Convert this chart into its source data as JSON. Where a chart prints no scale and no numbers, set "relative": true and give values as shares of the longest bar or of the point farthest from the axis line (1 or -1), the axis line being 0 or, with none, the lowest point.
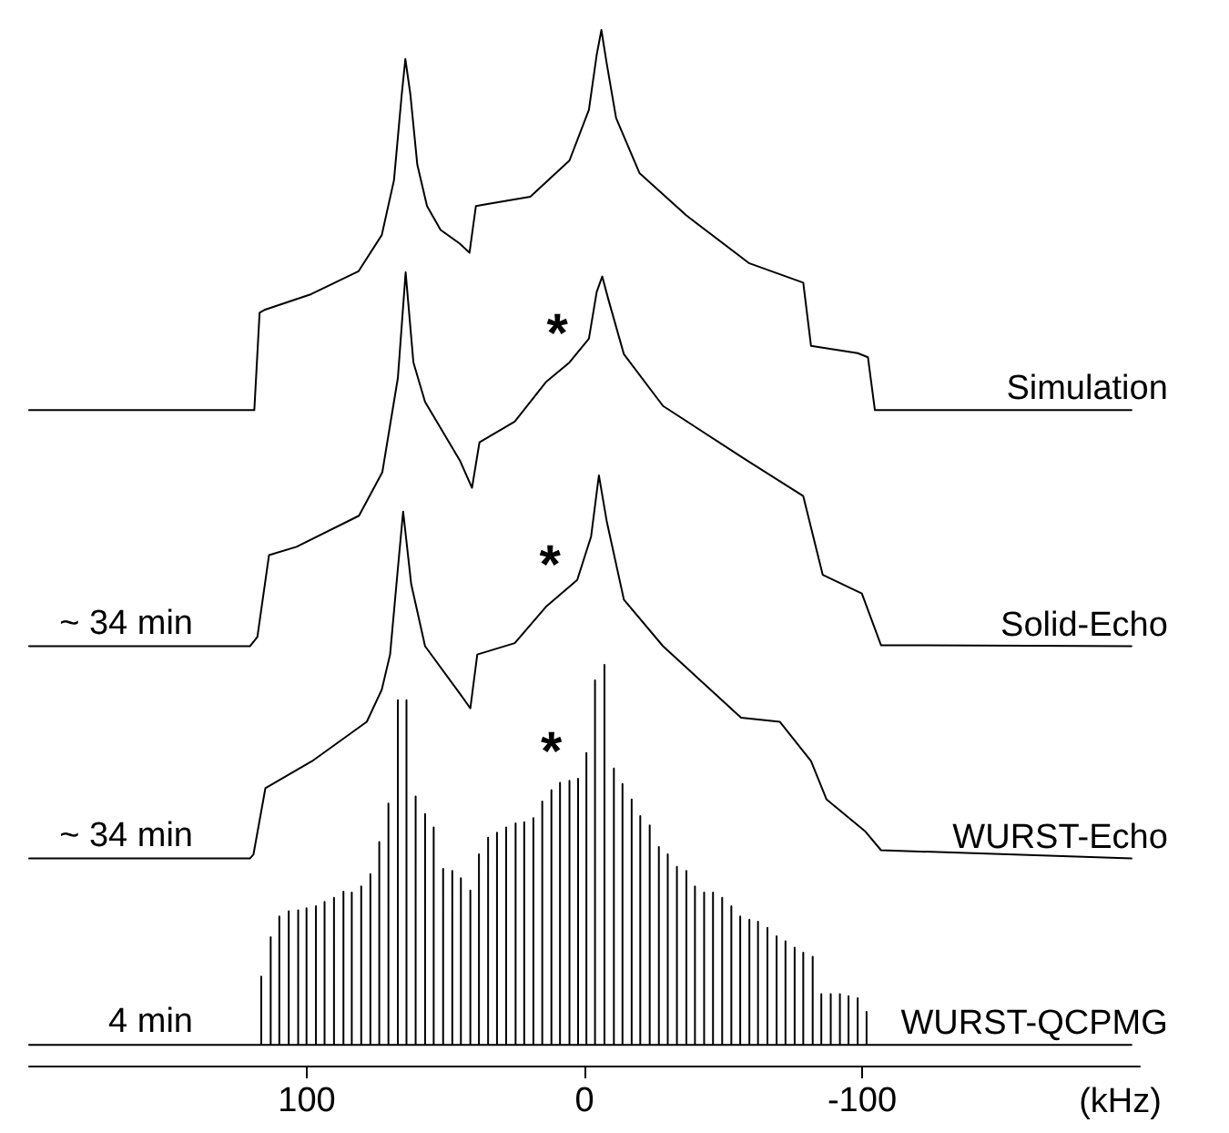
{
  "chart_data": {
    "type": "line",
    "relative": true,
    "xlabel": "(kHz)",
    "xlim": [
      200,
      -200
    ],
    "xticks": [
      100,
      0,
      -100
    ],
    "legend": false,
    "grid": false,
    "marker": "none",
    "line_style": "solid",
    "tick_labels": "x",
    "annotations": [
      "~ 34 min",
      "~ 34 min",
      "4 min",
      {
        "text": "*",
        "x": 9.8,
        "y": 0.669
      },
      {
        "text": "*",
        "x": 12.4,
        "y": 0.446
      },
      {
        "text": "*",
        "x": 11.9,
        "y": 0.266
      }
    ],
    "series": [
      {
        "name": "Simulation",
        "color": "#000000",
        "x": [
          200,
          118.9,
          117,
          115,
          98.4,
          81.4,
          73,
          68.6,
          65.8,
          64.5,
          62.7,
          60.2,
          56.7,
          51.8,
          45,
          41.4,
          39.1,
          34.9,
          19.5,
          5.4,
          -1.6,
          -4.4,
          -6.1,
          -8,
          -11.4,
          -19.8,
          -36.7,
          -59.2,
          -78.8,
          -81.6,
          -98.4,
          -102.1,
          -104.6,
          -197
        ],
        "values": [
          0.633,
          0.633,
          0.727,
          0.73,
          0.745,
          0.767,
          0.802,
          0.855,
          0.938,
          0.972,
          0.938,
          0.87,
          0.83,
          0.807,
          0.794,
          0.785,
          0.83,
          0.832,
          0.839,
          0.874,
          0.923,
          0.976,
          1,
          0.968,
          0.915,
          0.862,
          0.821,
          0.775,
          0.756,
          0.695,
          0.688,
          0.684,
          0.633,
          0.633
        ]
      },
      {
        "name": "Solid-Echo",
        "color": "#000000",
        "x": [
          200,
          120.5,
          117.8,
          113.6,
          103.7,
          81.2,
          72.8,
          67.2,
          64.4,
          61.6,
          57.4,
          44.8,
          40.5,
          37.8,
          25.1,
          13.9,
          5.4,
          -1.6,
          -4.4,
          -6.4,
          -8.6,
          -14.2,
          -28.3,
          -56.4,
          -78.8,
          -85.8,
          -99.9,
          -106.8,
          -197
        ],
        "values": [
          0.405,
          0.405,
          0.414,
          0.493,
          0.501,
          0.531,
          0.573,
          0.664,
          0.766,
          0.679,
          0.641,
          0.584,
          0.558,
          0.602,
          0.622,
          0.66,
          0.679,
          0.702,
          0.747,
          0.762,
          0.74,
          0.687,
          0.637,
          0.588,
          0.55,
          0.474,
          0.456,
          0.406,
          0.405
        ]
      },
      {
        "name": "WURST-Echo",
        "color": "#000000",
        "x": [
          200,
          120.5,
          119.2,
          114.9,
          98.1,
          78.4,
          73,
          70,
          67.2,
          65.3,
          62.4,
          57.4,
          44.8,
          41.1,
          38.6,
          25.1,
          13.9,
          2.6,
          -2.4,
          -5.2,
          -8,
          -14.2,
          -28.3,
          -56.4,
          -70.4,
          -81.6,
          -87.2,
          -101.2,
          -106.8,
          -197
        ],
        "values": [
          0.2,
          0.2,
          0.204,
          0.268,
          0.294,
          0.332,
          0.363,
          0.397,
          0.48,
          0.535,
          0.465,
          0.405,
          0.359,
          0.345,
          0.397,
          0.408,
          0.443,
          0.469,
          0.511,
          0.57,
          0.526,
          0.45,
          0.405,
          0.336,
          0.332,
          0.294,
          0.257,
          0.226,
          0.208,
          0.2
        ]
      },
      {
        "name": "WURST-QCPMG",
        "color": "#000000",
        "x": [
          200,
          116.4,
          116.4,
          116.4,
          113,
          113,
          113,
          109.9,
          109.9,
          109.9,
          106.5,
          106.5,
          106.5,
          103.1,
          103.1,
          103.1,
          100.1,
          100.1,
          100.1,
          96.7,
          96.7,
          96.7,
          93.6,
          93.6,
          93.6,
          90.2,
          90.2,
          90.2,
          86.8,
          86.8,
          86.8,
          83.8,
          83.8,
          83.8,
          80.4,
          80.4,
          80.4,
          77.1,
          77.1,
          77.1,
          73.9,
          73.9,
          73.9,
          70.6,
          70.6,
          70.6,
          67.2,
          67.2,
          67.2,
          64.1,
          64.1,
          64.1,
          60.8,
          60.8,
          60.8,
          57.4,
          57.4,
          57.4,
          54.3,
          54.3,
          54.3,
          50.9,
          50.9,
          50.9,
          47.6,
          47.6,
          47.6,
          44.5,
          44.5,
          44.5,
          41.1,
          41.1,
          41.1,
          38,
          38,
          38,
          34.7,
          34.7,
          34.7,
          31.5,
          31.5,
          31.5,
          28.2,
          28.2,
          28.2,
          24.8,
          24.8,
          24.8,
          21.7,
          21.7,
          21.7,
          18.4,
          18.4,
          18.4,
          15.2,
          15.2,
          15.2,
          11.9,
          11.9,
          11.9,
          8.8,
          8.8,
          8.8,
          5.4,
          5.4,
          5.4,
          2.3,
          2.3,
          2.3,
          -0.7,
          -0.7,
          -0.7,
          -3.8,
          -3.8,
          -3.8,
          -7.2,
          -7.2,
          -7.2,
          -10.6,
          -10.6,
          -10.6,
          -13.7,
          -13.7,
          -13.7,
          -17,
          -17,
          -17,
          -20.1,
          -20.1,
          -20.1,
          -23.5,
          -23.5,
          -23.5,
          -26.8,
          -26.8,
          -26.8,
          -30,
          -30,
          -30,
          -33.3,
          -33.3,
          -33.3,
          -36.7,
          -36.7,
          -36.7,
          -39.8,
          -39.8,
          -39.8,
          -43.1,
          -43.1,
          -43.1,
          -46.3,
          -46.3,
          -46.3,
          -49.6,
          -49.6,
          -49.6,
          -52.9,
          -52.9,
          -52.9,
          -56.1,
          -56.1,
          -56.1,
          -59.4,
          -59.4,
          -59.4,
          -62.5,
          -62.5,
          -62.5,
          -65.9,
          -65.9,
          -65.9,
          -69.2,
          -69.2,
          -69.2,
          -72.4,
          -72.4,
          -72.4,
          -75.7,
          -75.7,
          -75.7,
          -78.8,
          -78.8,
          -78.8,
          -82.2,
          -82.2,
          -82.2,
          -85.3,
          -85.3,
          -85.3,
          -88.7,
          -88.7,
          -88.7,
          -92,
          -92,
          -92,
          -95.1,
          -95.1,
          -95.1,
          -98.4,
          -98.4,
          -98.4,
          -101.6,
          -101.6,
          -101.6,
          -197
        ],
        "values": [
          0.02,
          0.02,
          0.086,
          0.02,
          0.02,
          0.124,
          0.02,
          0.02,
          0.144,
          0.02,
          0.02,
          0.149,
          0.02,
          0.02,
          0.15,
          0.02,
          0.02,
          0.152,
          0.02,
          0.02,
          0.154,
          0.02,
          0.02,
          0.158,
          0.02,
          0.02,
          0.162,
          0.02,
          0.02,
          0.168,
          0.02,
          0.02,
          0.167,
          0.02,
          0.02,
          0.173,
          0.02,
          0.02,
          0.185,
          0.02,
          0.02,
          0.216,
          0.02,
          0.02,
          0.253,
          0.02,
          0.02,
          0.353,
          0.02,
          0.02,
          0.353,
          0.02,
          0.02,
          0.26,
          0.02,
          0.02,
          0.243,
          0.02,
          0.02,
          0.23,
          0.02,
          0.02,
          0.19,
          0.02,
          0.02,
          0.188,
          0.02,
          0.02,
          0.181,
          0.02,
          0.02,
          0.169,
          0.02,
          0.02,
          0.204,
          0.02,
          0.02,
          0.22,
          0.02,
          0.02,
          0.225,
          0.02,
          0.02,
          0.23,
          0.02,
          0.02,
          0.234,
          0.02,
          0.02,
          0.235,
          0.02,
          0.02,
          0.239,
          0.02,
          0.02,
          0.255,
          0.02,
          0.02,
          0.266,
          0.02,
          0.02,
          0.273,
          0.02,
          0.02,
          0.275,
          0.02,
          0.02,
          0.277,
          0.02,
          0.02,
          0.302,
          0.02,
          0.02,
          0.372,
          0.02,
          0.02,
          0.387,
          0.02,
          0.02,
          0.287,
          0.02,
          0.02,
          0.272,
          0.02,
          0.02,
          0.257,
          0.02,
          0.02,
          0.241,
          0.02,
          0.02,
          0.232,
          0.02,
          0.02,
          0.211,
          0.02,
          0.02,
          0.204,
          0.02,
          0.02,
          0.192,
          0.02,
          0.02,
          0.188,
          0.02,
          0.02,
          0.173,
          0.02,
          0.02,
          0.167,
          0.02,
          0.02,
          0.167,
          0.02,
          0.02,
          0.162,
          0.02,
          0.02,
          0.154,
          0.02,
          0.02,
          0.144,
          0.02,
          0.02,
          0.141,
          0.02,
          0.02,
          0.139,
          0.02,
          0.02,
          0.133,
          0.02,
          0.02,
          0.125,
          0.02,
          0.02,
          0.12,
          0.02,
          0.02,
          0.114,
          0.02,
          0.02,
          0.109,
          0.02,
          0.02,
          0.105,
          0.02,
          0.02,
          0.069,
          0.02,
          0.02,
          0.069,
          0.02,
          0.02,
          0.069,
          0.02,
          0.02,
          0.067,
          0.02,
          0.02,
          0.065,
          0.02,
          0.02,
          0.052,
          0.02,
          0.02
        ]
      }
    ]
  }
}
